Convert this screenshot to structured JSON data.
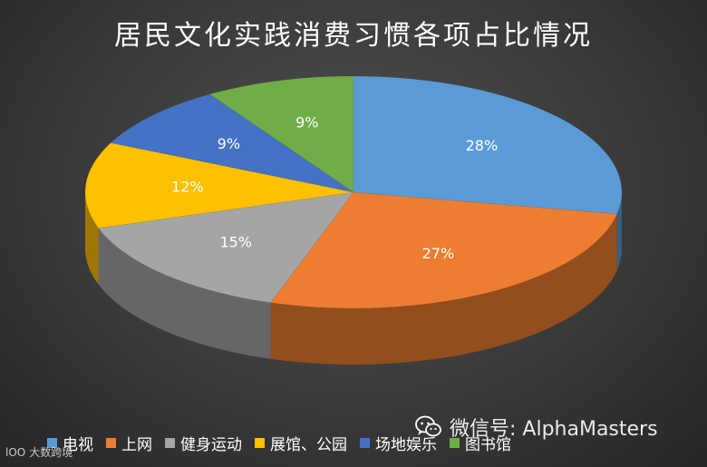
{
  "chart_data": {
    "type": "pie",
    "title": "居民文化实践消费习惯各项占比情况",
    "slices": [
      {
        "name": "电视",
        "value": 28,
        "label": "28%",
        "color": "#5b9bd5"
      },
      {
        "name": "上网",
        "value": 27,
        "label": "27%",
        "color": "#ed7d31"
      },
      {
        "name": "健身运动",
        "value": 15,
        "label": "15%",
        "color": "#a5a5a5"
      },
      {
        "name": "展馆、公园",
        "value": 12,
        "label": "12%",
        "color": "#ffc000"
      },
      {
        "name": "场地娱乐",
        "value": 9,
        "label": "9%",
        "color": "#4472c4"
      },
      {
        "name": "图书馆",
        "value": 9,
        "label": "9%",
        "color": "#70ad47"
      }
    ],
    "legend_position": "bottom"
  },
  "watermark": {
    "text": "微信号: AlphaMasters",
    "icon": "wechat-icon"
  },
  "corner_logo": {
    "mark": "lOO",
    "text": "大数跨境"
  }
}
